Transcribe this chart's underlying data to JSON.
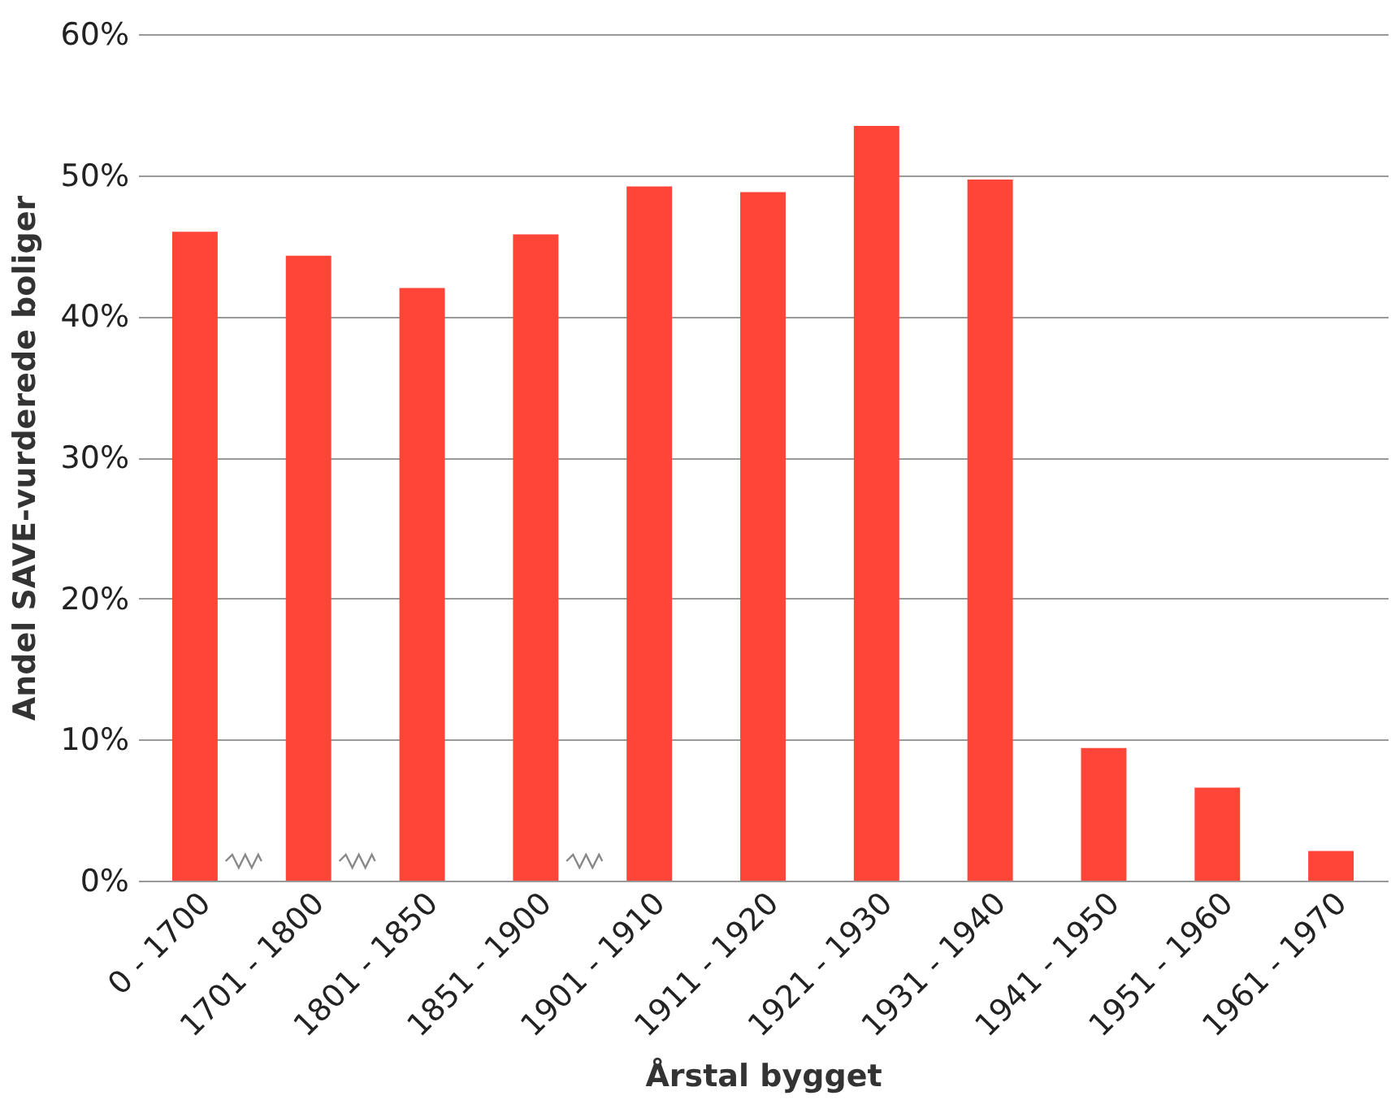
{
  "chart_data": {
    "type": "bar",
    "xlabel": "Årstal bygget",
    "ylabel": "Andel SAVE-vurderede boliger",
    "categories": [
      "0 - 1700",
      "1701 - 1800",
      "1801 - 1850",
      "1851 - 1900",
      "1901 - 1910",
      "1911 - 1920",
      "1921 - 1930",
      "1931 - 1940",
      "1941 - 1950",
      "1951 - 1960",
      "1961 - 1970"
    ],
    "values": [
      46.0,
      44.3,
      42.0,
      45.8,
      49.2,
      48.8,
      53.5,
      49.7,
      9.4,
      6.6,
      2.1
    ],
    "color": "#ff4438",
    "ylim": [
      0,
      60
    ],
    "yticks": [
      {
        "value": 0,
        "label": "0%"
      },
      {
        "value": 10,
        "label": "10%"
      },
      {
        "value": 20,
        "label": "20%"
      },
      {
        "value": 30,
        "label": "30%"
      },
      {
        "value": 40,
        "label": "40%"
      },
      {
        "value": 50,
        "label": "50%"
      },
      {
        "value": 60,
        "label": "60%"
      }
    ],
    "grid": "y"
  }
}
